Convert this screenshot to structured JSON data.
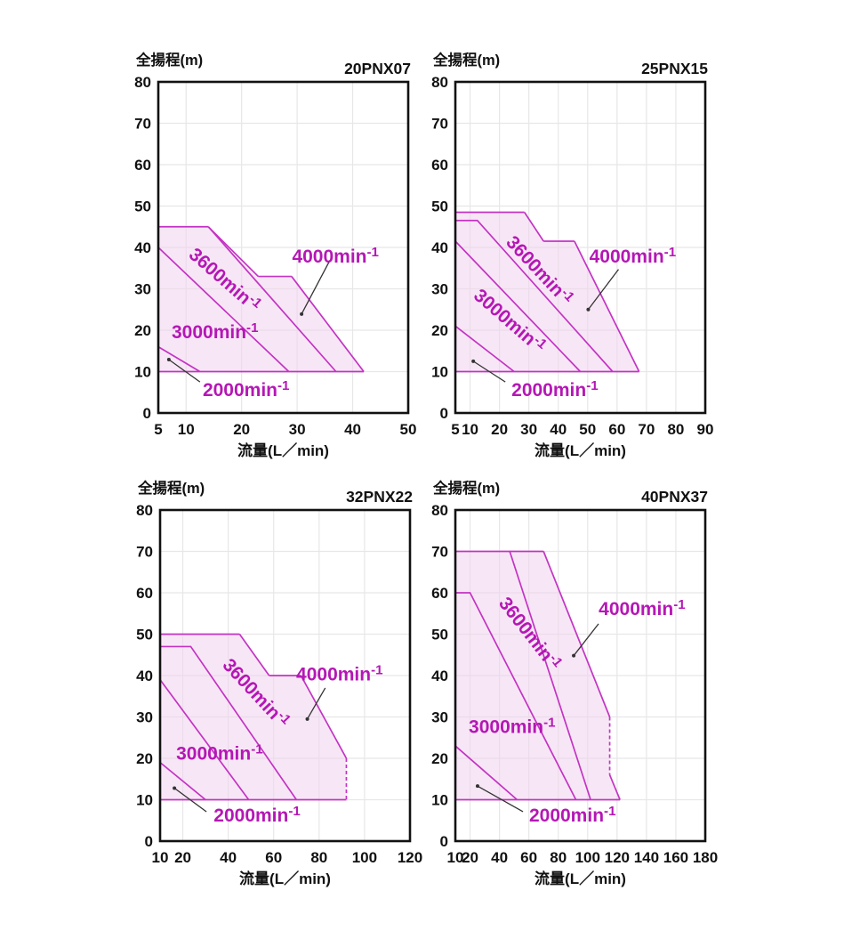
{
  "colors": {
    "line": "#C433C4",
    "fill": "#F0D4EE",
    "label": "#B517B5",
    "axis": "#111111",
    "grid": "#E7E7E7",
    "pointer": "#333333"
  },
  "chart_data": [
    {
      "type": "area",
      "model": "20PNX07",
      "y_axis_label": "全揚程(m)",
      "x_axis_label": "流量(L／min)",
      "x_min": 5,
      "x_max": 50,
      "x_ticks": [
        5,
        10,
        20,
        30,
        40,
        50
      ],
      "y_min": 0,
      "y_max": 80,
      "y_tick_step": 10,
      "envelope": [
        [
          5,
          45
        ],
        [
          14,
          45
        ],
        [
          23,
          33
        ],
        [
          29,
          33
        ],
        [
          42,
          10
        ],
        [
          5,
          10
        ]
      ],
      "dashed_edges": [],
      "curves": [
        {
          "name": "3600min-1",
          "points": [
            [
              14,
              45
            ],
            [
              37,
              10
            ]
          ]
        },
        {
          "name": "3000min-1",
          "points": [
            [
              5,
              40
            ],
            [
              28.5,
              10
            ]
          ]
        },
        {
          "name": "2000min-1",
          "points": [
            [
              5,
              16
            ],
            [
              12.5,
              10
            ]
          ]
        }
      ],
      "labels": [
        {
          "text": "4000min-1",
          "x": 36.9,
          "y": 37.9,
          "angle": 0,
          "anchor": "middle"
        },
        {
          "text": "3600min-1",
          "x": 16.2,
          "y": 32.5,
          "angle": 41,
          "anchor": "middle"
        },
        {
          "text": "3000min-1",
          "x": 7.4,
          "y": 19.6,
          "angle": 0,
          "anchor": "start"
        },
        {
          "text": "2000min-1",
          "x": 13.0,
          "y": 5.6,
          "angle": 0,
          "anchor": "start"
        }
      ],
      "pointers": [
        {
          "from": [
            35.9,
            36.9
          ],
          "to": [
            30.8,
            23.9
          ]
        },
        {
          "from": [
            12.5,
            7.5
          ],
          "to": [
            6.9,
            12.9
          ]
        }
      ]
    },
    {
      "type": "area",
      "model": "25PNX15",
      "y_axis_label": "全揚程(m)",
      "x_axis_label": "流量(L／min)",
      "x_min": 5,
      "x_max": 90,
      "x_ticks": [
        5,
        10,
        20,
        30,
        40,
        50,
        60,
        70,
        80,
        90
      ],
      "y_min": 0,
      "y_max": 80,
      "y_tick_step": 10,
      "envelope": [
        [
          5,
          48.5
        ],
        [
          28.5,
          48.5
        ],
        [
          35,
          41.5
        ],
        [
          45.5,
          41.5
        ],
        [
          67.5,
          10
        ],
        [
          5,
          10
        ]
      ],
      "dashed_edges": [],
      "curves": [
        {
          "name": "3600min-1",
          "points": [
            [
              5,
              46.5
            ],
            [
              12.5,
              46.5
            ],
            [
              58.5,
              10
            ]
          ]
        },
        {
          "name": "3000min-1",
          "points": [
            [
              5,
              41.5
            ],
            [
              47.5,
              10
            ]
          ]
        },
        {
          "name": "2000min-1",
          "points": [
            [
              5,
              21
            ],
            [
              25,
              10
            ]
          ]
        }
      ],
      "labels": [
        {
          "text": "4000min-1",
          "x": 65.3,
          "y": 37.9,
          "angle": 0,
          "anchor": "middle"
        },
        {
          "text": "3600min-1",
          "x": 32.0,
          "y": 34.9,
          "angle": 47,
          "anchor": "middle"
        },
        {
          "text": "3000min-1",
          "x": 22.0,
          "y": 22.6,
          "angle": 41,
          "anchor": "middle"
        },
        {
          "text": "2000min-1",
          "x": 24.1,
          "y": 5.6,
          "angle": 0,
          "anchor": "start"
        }
      ],
      "pointers": [
        {
          "from": [
            60.5,
            34.7
          ],
          "to": [
            50.2,
            25.0
          ]
        },
        {
          "from": [
            22.0,
            7.5
          ],
          "to": [
            11.1,
            12.5
          ]
        }
      ]
    },
    {
      "type": "area",
      "model": "32PNX22",
      "y_axis_label": "全揚程(m)",
      "x_axis_label": "流量(L／min)",
      "x_min": 10,
      "x_max": 120,
      "x_ticks": [
        10,
        20,
        40,
        60,
        80,
        100,
        120
      ],
      "y_min": 0,
      "y_max": 80,
      "y_tick_step": 10,
      "envelope": [
        [
          10,
          50
        ],
        [
          45,
          50
        ],
        [
          58,
          40
        ],
        [
          72,
          40
        ],
        [
          92,
          20
        ],
        [
          92,
          10
        ],
        [
          10,
          10
        ]
      ],
      "dashed_edges": [
        [
          [
            92,
            20
          ],
          [
            92,
            10
          ]
        ]
      ],
      "curves": [
        {
          "name": "3600min-1",
          "points": [
            [
              10,
              47
            ],
            [
              23.5,
              47
            ],
            [
              70,
              10
            ]
          ]
        },
        {
          "name": "3000min-1",
          "points": [
            [
              10,
              39
            ],
            [
              49,
              10
            ]
          ]
        },
        {
          "name": "2000min-1",
          "points": [
            [
              10,
              19
            ],
            [
              30,
              10
            ]
          ]
        }
      ],
      "labels": [
        {
          "text": "4000min-1",
          "x": 89.0,
          "y": 40.3,
          "angle": 0,
          "anchor": "middle"
        },
        {
          "text": "3600min-1",
          "x": 50.1,
          "y": 36.2,
          "angle": 47,
          "anchor": "middle"
        },
        {
          "text": "3000min-1",
          "x": 17.1,
          "y": 21.2,
          "angle": 0,
          "anchor": "start"
        },
        {
          "text": "2000min-1",
          "x": 33.6,
          "y": 6.2,
          "angle": 0,
          "anchor": "start"
        }
      ],
      "pointers": [
        {
          "from": [
            82.7,
            37.0
          ],
          "to": [
            74.8,
            29.5
          ]
        },
        {
          "from": [
            30.4,
            7.1
          ],
          "to": [
            16.3,
            12.8
          ]
        }
      ]
    },
    {
      "type": "area",
      "model": "40PNX37",
      "y_axis_label": "全揚程(m)",
      "x_axis_label": "流量(L／min)",
      "x_min": 10,
      "x_max": 180,
      "x_ticks": [
        10,
        20,
        40,
        60,
        80,
        100,
        120,
        140,
        160,
        180
      ],
      "y_min": 0,
      "y_max": 80,
      "y_tick_step": 10,
      "envelope": [
        [
          10,
          70
        ],
        [
          70,
          70
        ],
        [
          115,
          30
        ],
        [
          115,
          16
        ],
        [
          122,
          10
        ],
        [
          10,
          10
        ]
      ],
      "dashed_edges": [
        [
          [
            115,
            30
          ],
          [
            115,
            16
          ]
        ]
      ],
      "curves": [
        {
          "name": "3600min-1",
          "points": [
            [
              47,
              70
            ],
            [
              102,
              10
            ]
          ]
        },
        {
          "name": "3000min-1",
          "points": [
            [
              10,
              60
            ],
            [
              20,
              60
            ],
            [
              92,
              10
            ]
          ]
        },
        {
          "name": "2000min-1",
          "points": [
            [
              10,
              23
            ],
            [
              52,
              10
            ]
          ]
        }
      ],
      "labels": [
        {
          "text": "4000min-1",
          "x": 137.0,
          "y": 56.1,
          "angle": 0,
          "anchor": "middle"
        },
        {
          "text": "3600min-1",
          "x": 57.2,
          "y": 50.7,
          "angle": 52,
          "anchor": "middle"
        },
        {
          "text": "3000min-1",
          "x": 19.1,
          "y": 27.6,
          "angle": 0,
          "anchor": "start"
        },
        {
          "text": "2000min-1",
          "x": 60.2,
          "y": 6.2,
          "angle": 0,
          "anchor": "start"
        }
      ],
      "pointers": [
        {
          "from": [
            107.4,
            52.5
          ],
          "to": [
            90.5,
            44.8
          ]
        },
        {
          "from": [
            56.0,
            7.1
          ],
          "to": [
            25.1,
            13.3
          ]
        }
      ]
    }
  ]
}
